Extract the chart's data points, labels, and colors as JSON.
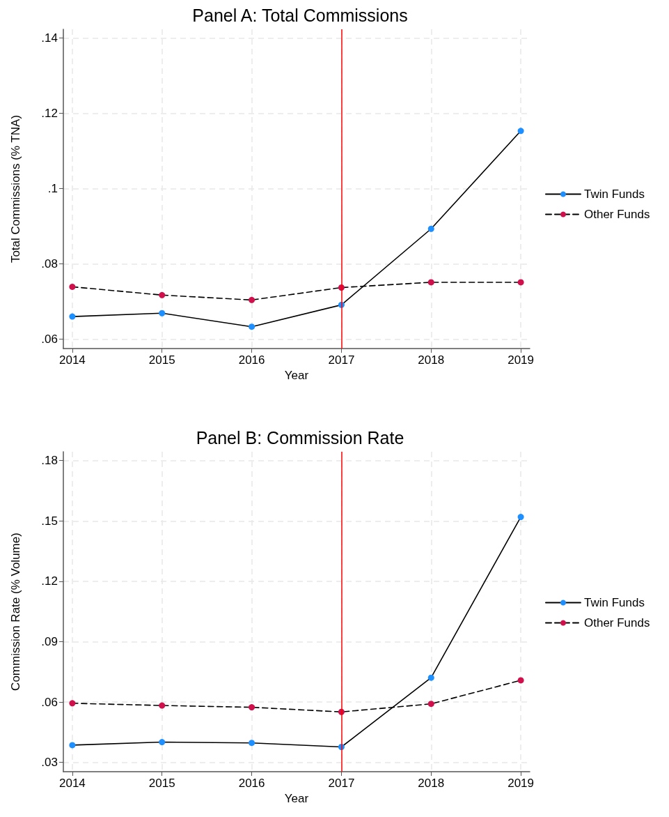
{
  "chart_data": [
    {
      "type": "line",
      "title": "Panel A: Total Commissions",
      "xlabel": "Year",
      "ylabel": "Total Commissions (% TNA)",
      "x": [
        2014,
        2015,
        2016,
        2017,
        2018,
        2019
      ],
      "series": [
        {
          "name": "Twin Funds",
          "color": "#1e8fff",
          "line_style": "solid",
          "values": [
            0.066,
            0.0669,
            0.0633,
            0.0691,
            0.0893,
            0.1153
          ]
        },
        {
          "name": "Other Funds",
          "color": "#d0104c",
          "line_style": "dashed",
          "values": [
            0.0739,
            0.0717,
            0.0704,
            0.0737,
            0.0751,
            0.0751
          ]
        }
      ],
      "xlim": [
        2013.9,
        2019.1
      ],
      "xticks": [
        2014,
        2015,
        2016,
        2017,
        2018,
        2019
      ],
      "ylim": [
        0.0575,
        0.1423
      ],
      "yticks": [
        {
          "value": 0.06,
          "label": ".06"
        },
        {
          "value": 0.08,
          "label": ".08"
        },
        {
          "value": 0.1,
          "label": ".1"
        },
        {
          "value": 0.12,
          "label": ".12"
        },
        {
          "value": 0.14,
          "label": ".14"
        }
      ],
      "ref_lines": [
        {
          "axis": "x",
          "value": 2017,
          "color": "#ff0000"
        }
      ],
      "grid": true,
      "legend": "right",
      "marker": "circle"
    },
    {
      "type": "line",
      "title": "Panel B: Commission Rate",
      "xlabel": "Year",
      "ylabel": "Commission Rate (% Volume)",
      "x": [
        2014,
        2015,
        2016,
        2017,
        2018,
        2019
      ],
      "series": [
        {
          "name": "Twin Funds",
          "color": "#1e8fff",
          "line_style": "solid",
          "values": [
            0.0386,
            0.0401,
            0.0397,
            0.0377,
            0.0721,
            0.152
          ]
        },
        {
          "name": "Other Funds",
          "color": "#d0104c",
          "line_style": "dashed",
          "values": [
            0.0594,
            0.0583,
            0.0574,
            0.0551,
            0.0591,
            0.0708
          ]
        }
      ],
      "xlim": [
        2013.9,
        2019.1
      ],
      "xticks": [
        2014,
        2015,
        2016,
        2017,
        2018,
        2019
      ],
      "ylim": [
        0.0254,
        0.1844
      ],
      "yticks": [
        {
          "value": 0.03,
          "label": ".03"
        },
        {
          "value": 0.06,
          "label": ".06"
        },
        {
          "value": 0.09,
          "label": ".09"
        },
        {
          "value": 0.12,
          "label": ".12"
        },
        {
          "value": 0.15,
          "label": ".15"
        },
        {
          "value": 0.18,
          "label": ".18"
        }
      ],
      "ref_lines": [
        {
          "axis": "x",
          "value": 2017,
          "color": "#ff0000"
        }
      ],
      "grid": true,
      "legend": "right",
      "marker": "circle"
    }
  ]
}
